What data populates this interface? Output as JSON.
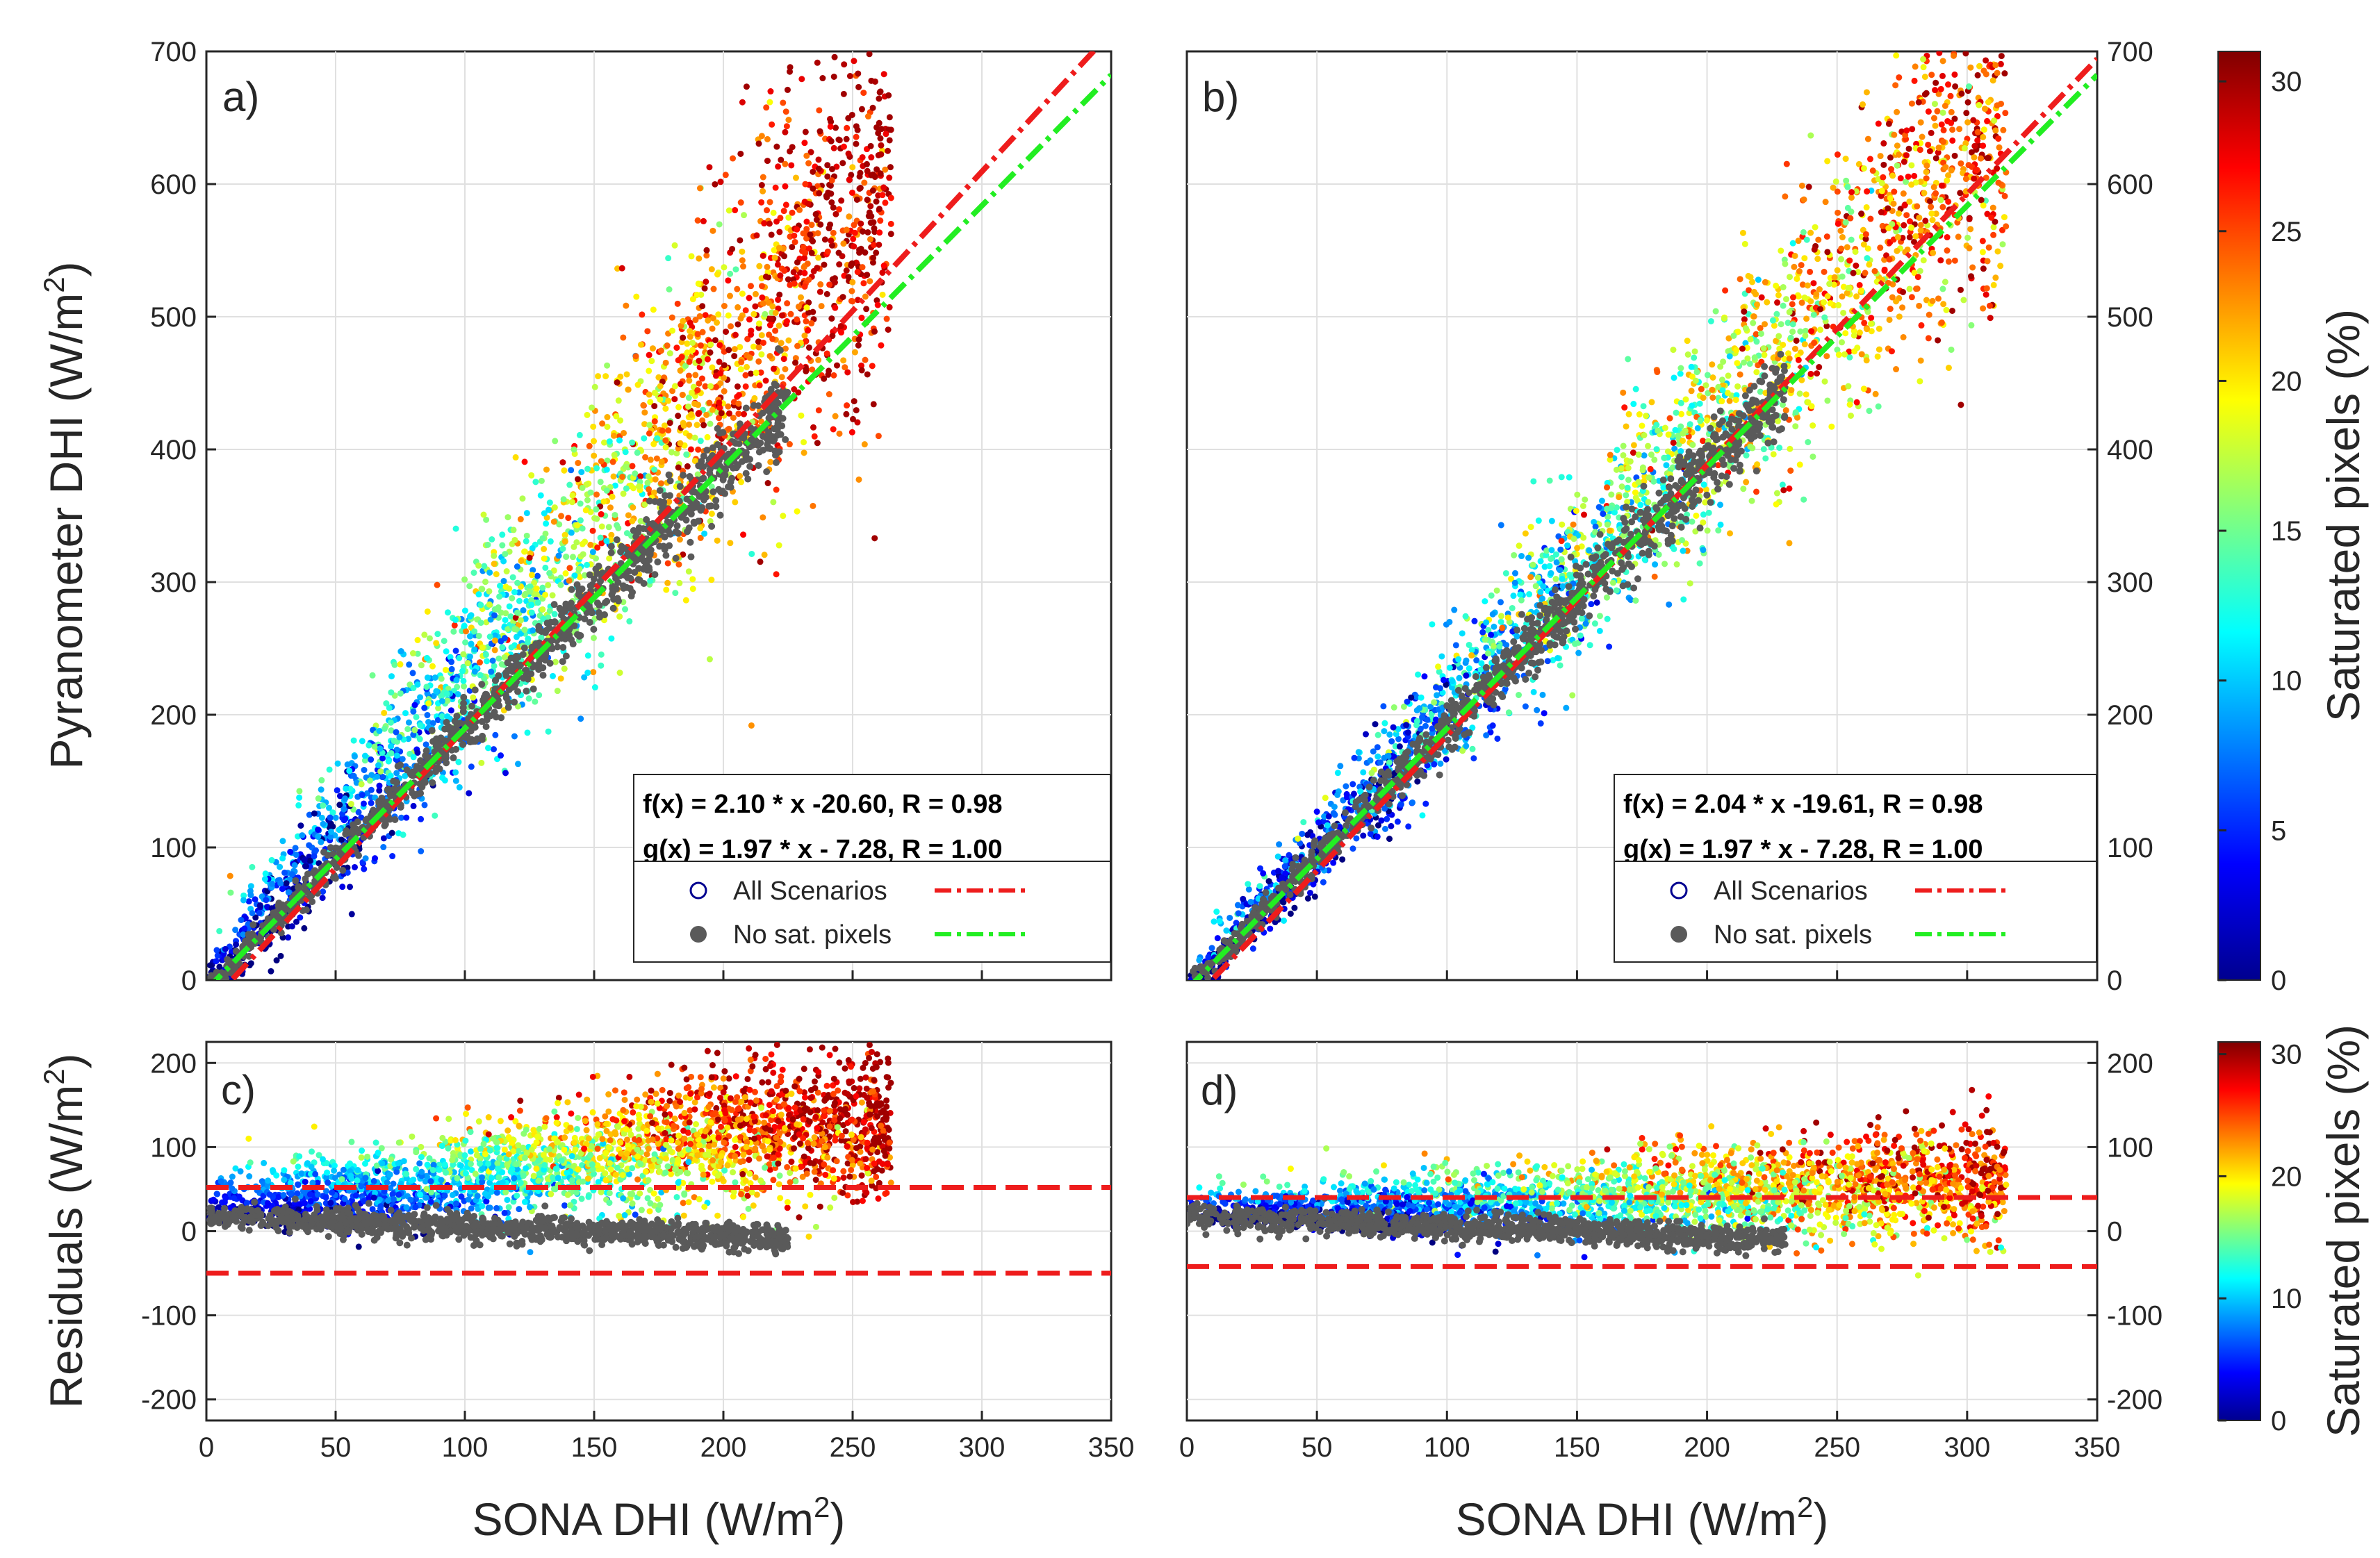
{
  "figure": {
    "y_label_top": "Pyranometer DHI (W/m",
    "y_label_bottom": "Residuals (W/m",
    "x_label": "SONA DHI (W/m",
    "unit_superscript": "2",
    "unit_close": ")",
    "colorbar_label": "Saturated pixels (%)"
  },
  "colors": {
    "all_scenarios_fit": "#ee1c1c",
    "no_sat_fit": "#22ee22",
    "no_sat_points": "#5a5a5a",
    "residual_bounds": "#ee1c1c",
    "all_scenarios_marker": "#00008f"
  },
  "legend": {
    "all_scenarios": "All Scenarios",
    "no_sat_pixels": "No sat. pixels"
  },
  "chart_data": [
    {
      "panel": "a)",
      "type": "scatter",
      "xlim": [
        0,
        350
      ],
      "ylim": [
        0,
        700
      ],
      "xticks": [
        "0",
        "50",
        "100",
        "150",
        "200",
        "250",
        "300",
        "350"
      ],
      "yticks": [
        "0",
        "100",
        "200",
        "300",
        "400",
        "500",
        "600",
        "700"
      ],
      "grid": true,
      "equation_f": "f(x) = 2.10 * x -20.60,  R = 0.98",
      "equation_g": "g(x) = 1.97 * x - 7.28,  R = 1.00",
      "fit_f": {
        "slope": 2.1,
        "intercept": -20.6
      },
      "fit_g": {
        "slope": 1.97,
        "intercept": -7.28
      },
      "colorbar": {
        "range": [
          0,
          31
        ],
        "ticks": [
          "0",
          "5",
          "10",
          "15",
          "20",
          "25",
          "30"
        ]
      }
    },
    {
      "panel": "b)",
      "type": "scatter",
      "xlim": [
        0,
        350
      ],
      "ylim": [
        0,
        700
      ],
      "xticks": [
        "0",
        "50",
        "100",
        "150",
        "200",
        "250",
        "300",
        "350"
      ],
      "yticks": [
        "0",
        "100",
        "200",
        "300",
        "400",
        "500",
        "600",
        "700"
      ],
      "grid": true,
      "equation_f": "f(x) = 2.04 * x -19.61,  R = 0.98",
      "equation_g": "g(x) = 1.97 * x - 7.28,  R = 1.00",
      "fit_f": {
        "slope": 2.04,
        "intercept": -19.61
      },
      "fit_g": {
        "slope": 1.97,
        "intercept": -7.28
      }
    },
    {
      "panel": "c)",
      "type": "scatter",
      "xlim": [
        0,
        350
      ],
      "ylim": [
        -225,
        225
      ],
      "xticks": [
        "0",
        "50",
        "100",
        "150",
        "200",
        "250",
        "300",
        "350"
      ],
      "yticks": [
        "-200",
        "-100",
        "0",
        "100",
        "200"
      ],
      "grid": true,
      "bounds": [
        52,
        -50
      ]
    },
    {
      "panel": "d)",
      "type": "scatter",
      "xlim": [
        0,
        350
      ],
      "ylim": [
        -225,
        225
      ],
      "xticks": [
        "0",
        "50",
        "100",
        "150",
        "200",
        "250",
        "300",
        "350"
      ],
      "yticks": [
        "-200",
        "-100",
        "0",
        "100",
        "200"
      ],
      "grid": true,
      "bounds": [
        40,
        -42
      ],
      "colorbar": {
        "range": [
          0,
          31
        ],
        "ticks": [
          "0",
          "10",
          "20",
          "30"
        ]
      }
    }
  ]
}
